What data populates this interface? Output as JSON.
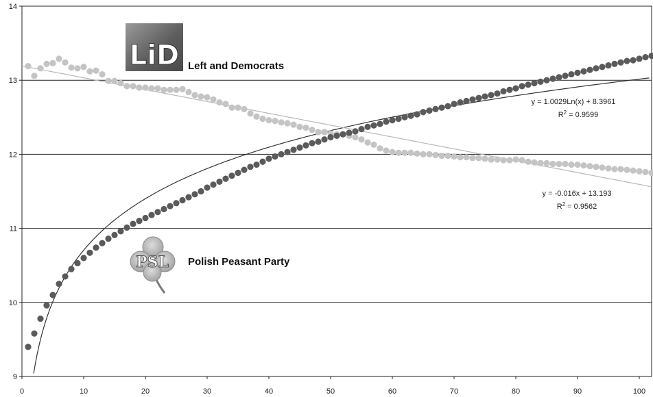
{
  "chart_data": {
    "type": "scatter",
    "title": "",
    "xlabel": "",
    "ylabel": "",
    "xlim": [
      0,
      102
    ],
    "ylim": [
      9,
      14
    ],
    "x_ticks": [
      0,
      10,
      20,
      30,
      40,
      50,
      60,
      70,
      80,
      90,
      100
    ],
    "y_ticks": [
      9,
      10,
      11,
      12,
      13,
      14
    ],
    "grid": {
      "horizontal": true,
      "vertical": false
    },
    "series": [
      {
        "name": "Left and Democrats",
        "logo_text": "LiD",
        "color": "#c4c4c4",
        "x": [
          1,
          2,
          3,
          4,
          5,
          6,
          7,
          8,
          9,
          10,
          11,
          12,
          13,
          14,
          15,
          16,
          17,
          18,
          19,
          20,
          21,
          22,
          23,
          24,
          25,
          26,
          27,
          28,
          29,
          30,
          31,
          32,
          33,
          34,
          35,
          36,
          37,
          38,
          39,
          40,
          41,
          42,
          43,
          44,
          45,
          46,
          47,
          48,
          49,
          50,
          51,
          52,
          53,
          54,
          55,
          56,
          57,
          58,
          59,
          60,
          61,
          62,
          63,
          64,
          65,
          66,
          67,
          68,
          69,
          70,
          71,
          72,
          73,
          74,
          75,
          76,
          77,
          78,
          79,
          80,
          81,
          82,
          83,
          84,
          85,
          86,
          87,
          88,
          89,
          90,
          91,
          92,
          93,
          94,
          95,
          96,
          97,
          98,
          99,
          100,
          101,
          102
        ],
        "y": [
          13.19,
          13.06,
          13.16,
          13.22,
          13.23,
          13.29,
          13.24,
          13.17,
          13.16,
          13.18,
          13.12,
          13.13,
          13.08,
          12.99,
          12.99,
          12.96,
          12.92,
          12.92,
          12.9,
          12.9,
          12.89,
          12.89,
          12.87,
          12.87,
          12.87,
          12.88,
          12.84,
          12.8,
          12.78,
          12.77,
          12.74,
          12.7,
          12.68,
          12.63,
          12.63,
          12.61,
          12.55,
          12.51,
          12.48,
          12.46,
          12.45,
          12.43,
          12.42,
          12.4,
          12.37,
          12.36,
          12.33,
          12.3,
          12.3,
          12.28,
          12.27,
          12.27,
          12.25,
          12.23,
          12.2,
          12.16,
          12.13,
          12.08,
          12.05,
          12.03,
          12.02,
          12.02,
          12.02,
          12.01,
          12.0,
          12.0,
          11.99,
          11.98,
          11.98,
          11.97,
          11.96,
          11.96,
          11.95,
          11.95,
          11.94,
          11.93,
          11.93,
          11.92,
          11.92,
          11.93,
          11.92,
          11.9,
          11.89,
          11.88,
          11.88,
          11.87,
          11.87,
          11.87,
          11.86,
          11.86,
          11.85,
          11.84,
          11.83,
          11.82,
          11.81,
          11.8,
          11.8,
          11.79,
          11.78,
          11.77,
          11.76,
          11.75
        ]
      },
      {
        "name": "Polish Peasant Party",
        "logo_text": "PSL",
        "color": "#5a5a5a",
        "x": [
          1,
          2,
          3,
          4,
          5,
          6,
          7,
          8,
          9,
          10,
          11,
          12,
          13,
          14,
          15,
          16,
          17,
          18,
          19,
          20,
          21,
          22,
          23,
          24,
          25,
          26,
          27,
          28,
          29,
          30,
          31,
          32,
          33,
          34,
          35,
          36,
          37,
          38,
          39,
          40,
          41,
          42,
          43,
          44,
          45,
          46,
          47,
          48,
          49,
          50,
          51,
          52,
          53,
          54,
          55,
          56,
          57,
          58,
          59,
          60,
          61,
          62,
          63,
          64,
          65,
          66,
          67,
          68,
          69,
          70,
          71,
          72,
          73,
          74,
          75,
          76,
          77,
          78,
          79,
          80,
          81,
          82,
          83,
          84,
          85,
          86,
          87,
          88,
          89,
          90,
          91,
          92,
          93,
          94,
          95,
          96,
          97,
          98,
          99,
          100,
          101,
          102
        ],
        "y": [
          9.4,
          9.58,
          9.78,
          9.96,
          10.1,
          10.25,
          10.35,
          10.45,
          10.53,
          10.6,
          10.67,
          10.74,
          10.8,
          10.86,
          10.91,
          10.96,
          11.01,
          11.06,
          11.1,
          11.14,
          11.18,
          11.22,
          11.26,
          11.3,
          11.34,
          11.38,
          11.42,
          11.46,
          11.5,
          11.55,
          11.59,
          11.63,
          11.67,
          11.71,
          11.75,
          11.79,
          11.83,
          11.86,
          11.9,
          11.94,
          11.97,
          12.0,
          12.03,
          12.06,
          12.09,
          12.12,
          12.15,
          12.17,
          12.2,
          12.23,
          12.25,
          12.27,
          12.29,
          12.31,
          12.34,
          12.37,
          12.39,
          12.41,
          12.44,
          12.46,
          12.48,
          12.5,
          12.52,
          12.54,
          12.57,
          12.59,
          12.61,
          12.63,
          12.65,
          12.68,
          12.7,
          12.72,
          12.74,
          12.76,
          12.78,
          12.8,
          12.82,
          12.85,
          12.87,
          12.89,
          12.92,
          12.94,
          12.96,
          12.98,
          13.0,
          13.02,
          13.04,
          13.06,
          13.08,
          13.1,
          13.12,
          13.14,
          13.16,
          13.18,
          13.2,
          13.22,
          13.24,
          13.26,
          13.27,
          13.29,
          13.31,
          13.33
        ]
      }
    ],
    "trendlines": [
      {
        "series": "Polish Peasant Party",
        "type": "logarithmic",
        "a": 1.0029,
        "b": 8.3961,
        "equation": "y = 1.0029Ln(x) + 8.3961",
        "r2_label": "R",
        "r2_value": " = 0.9599"
      },
      {
        "series": "Left and Democrats",
        "type": "linear",
        "a": -0.016,
        "b": 13.193,
        "equation": "y = -0.016x + 13.193",
        "r2_label": "R",
        "r2_value": " = 0.9562"
      }
    ]
  }
}
